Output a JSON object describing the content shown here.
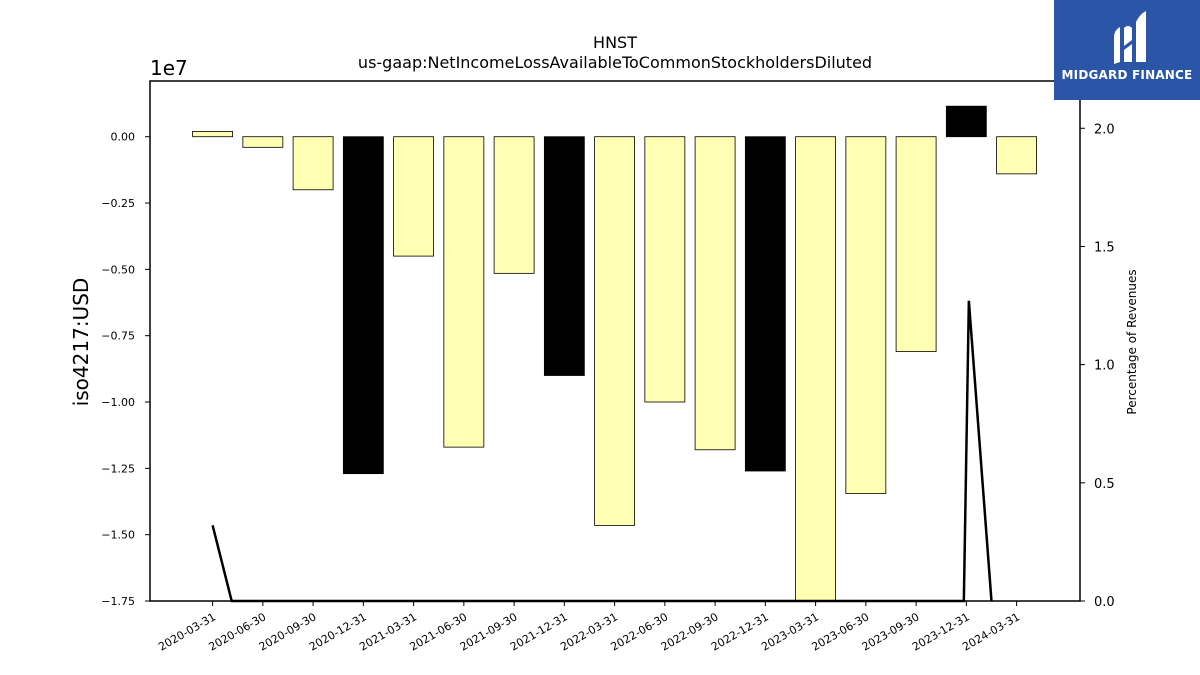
{
  "chart_data": {
    "type": "bar",
    "title": "HNST",
    "subtitle": "us-gaap:NetIncomeLossAvailableToCommonStockholdersDiluted",
    "ylabel": "iso4217:USD",
    "y_offset_label": "1e7",
    "y2label": "Percentage of Revenues",
    "categories": [
      "2020-03-31",
      "2020-06-30",
      "2020-09-30",
      "2020-12-31",
      "2021-03-31",
      "2021-06-30",
      "2021-09-30",
      "2021-12-31",
      "2022-03-31",
      "2022-06-30",
      "2022-09-30",
      "2022-12-31",
      "2023-03-31",
      "2023-06-30",
      "2023-09-30",
      "2023-12-31",
      "2024-03-31"
    ],
    "values": [
      200000,
      -400000,
      -2000000,
      -12700000,
      -4500000,
      -11700000,
      -5150000,
      -9000000,
      -14650000,
      -10000000,
      -11800000,
      -12600000,
      -17800000,
      -13450000,
      -8100000,
      1150000,
      -1400000
    ],
    "bar_colors": [
      "#ffffb3",
      "#ffffb3",
      "#ffffb3",
      "#000000",
      "#ffffb3",
      "#ffffb3",
      "#ffffb3",
      "#000000",
      "#ffffb3",
      "#ffffb3",
      "#ffffb3",
      "#000000",
      "#ffffb3",
      "#ffffb3",
      "#ffffb3",
      "#000000",
      "#ffffb3"
    ],
    "ylim": [
      -17500000,
      2100000
    ],
    "yticks": [
      0,
      -2500000,
      -5000000,
      -7500000,
      -10000000,
      -12500000,
      -15000000,
      -17500000
    ],
    "ytick_labels": [
      "0.00",
      "−0.25",
      "−0.50",
      "−0.75",
      "−1.00",
      "−1.25",
      "−1.50",
      "−1.75"
    ],
    "y2lim": [
      0,
      2.2
    ],
    "y2ticks": [
      0,
      0.5,
      1.0,
      1.5,
      2.0
    ],
    "y2tick_labels": [
      "0.0",
      "0.5",
      "1.0",
      "1.5",
      "2.0"
    ],
    "line_series": {
      "axis": "y2",
      "x_index": [
        0,
        0.38,
        14.95,
        15.05,
        15.5
      ],
      "values": [
        0.32,
        0,
        0,
        1.27,
        0
      ]
    },
    "grid": false,
    "legend": "none"
  },
  "logo": {
    "text": "MIDGARD FINANCE"
  },
  "colors": {
    "logo_bg": "#2b56a8",
    "bar_light": "#ffffb3",
    "bar_dark": "#000000"
  }
}
